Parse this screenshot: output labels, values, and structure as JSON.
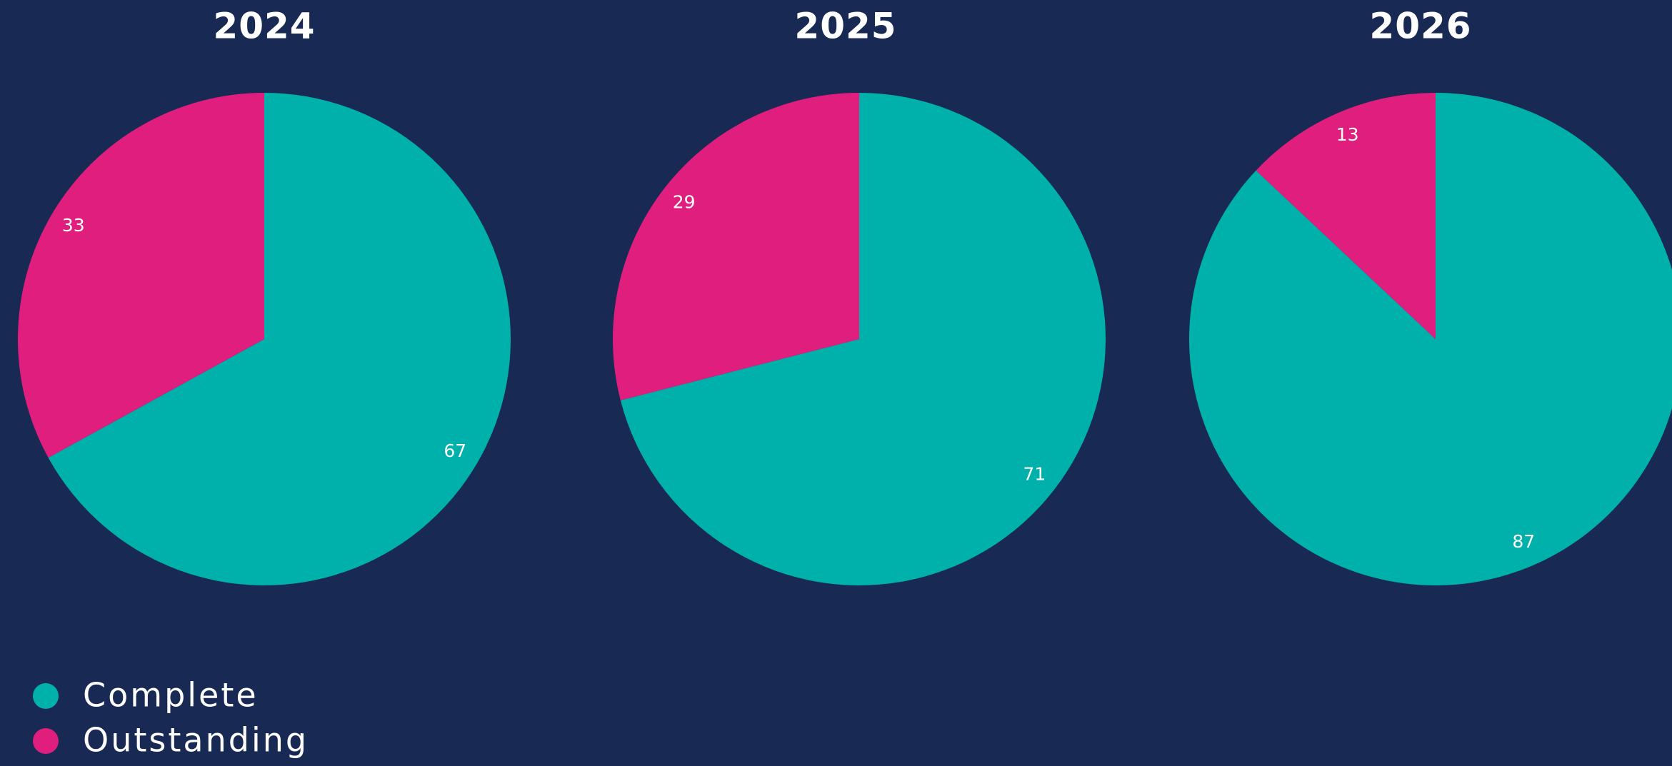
{
  "chart_data": [
    {
      "type": "pie",
      "title": "2024",
      "categories": [
        "Complete",
        "Outstanding"
      ],
      "values": [
        67,
        33
      ],
      "colors": [
        "#00b0aa",
        "#e01e7d"
      ]
    },
    {
      "type": "pie",
      "title": "2025",
      "categories": [
        "Complete",
        "Outstanding"
      ],
      "values": [
        71,
        29
      ],
      "colors": [
        "#00b0aa",
        "#e01e7d"
      ]
    },
    {
      "type": "pie",
      "title": "2026",
      "categories": [
        "Complete",
        "Outstanding"
      ],
      "values": [
        87,
        13
      ],
      "colors": [
        "#00b0aa",
        "#e01e7d"
      ]
    }
  ]
}
